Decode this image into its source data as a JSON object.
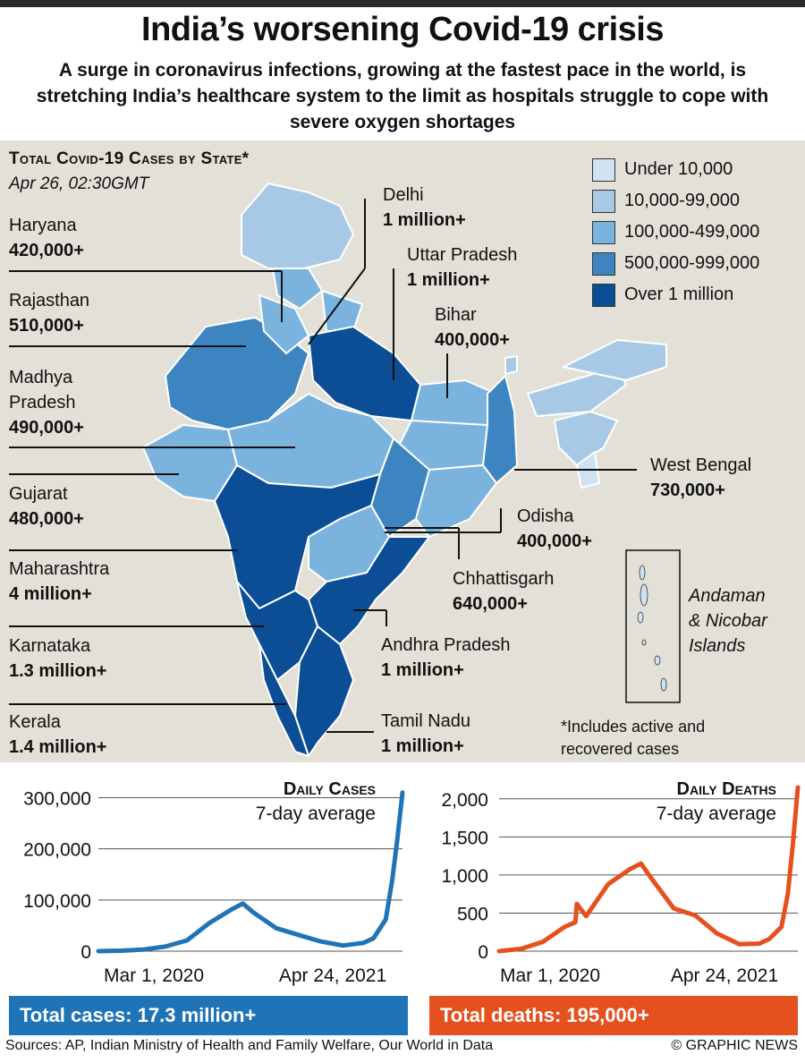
{
  "header": {
    "title": "India’s worsening Covid-19 crisis",
    "subtitle": "A surge in coronavirus infections, growing at the fastest pace in the world, is stretching India’s healthcare system to the limit as hospitals struggle to cope with severe oxygen shortages"
  },
  "map": {
    "heading": "Total Covid-19 Cases by State*",
    "date": "Apr 26, 02:30GMT",
    "legend": [
      {
        "label": "Under 10,000",
        "color": "#cfe2f2"
      },
      {
        "label": "10,000-99,000",
        "color": "#a8c9e6"
      },
      {
        "label": "100,000-499,000",
        "color": "#7ab4de"
      },
      {
        "label": "500,000-999,000",
        "color": "#3d85c0"
      },
      {
        "label": "Over 1 million",
        "color": "#0b4e96"
      }
    ],
    "states": [
      {
        "name": "Haryana",
        "value": "420,000+"
      },
      {
        "name": "Rajasthan",
        "value": "510,000+"
      },
      {
        "name": "Madhya Pradesh",
        "name_l1": "Madhya",
        "name_l2": "Pradesh",
        "value": "490,000+"
      },
      {
        "name": "Gujarat",
        "value": "480,000+"
      },
      {
        "name": "Maharashtra",
        "value": "4 million+"
      },
      {
        "name": "Karnataka",
        "value": "1.3 million+"
      },
      {
        "name": "Kerala",
        "value": "1.4 million+"
      },
      {
        "name": "Delhi",
        "value": "1 million+"
      },
      {
        "name": "Uttar Pradesh",
        "value": "1 million+"
      },
      {
        "name": "Bihar",
        "value": "400,000+"
      },
      {
        "name": "West Bengal",
        "value": "730,000+"
      },
      {
        "name": "Odisha",
        "value": "400,000+"
      },
      {
        "name": "Chhattisgarh",
        "value": "640,000+"
      },
      {
        "name": "Andhra Pradesh",
        "value": "1 million+"
      },
      {
        "name": "Tamil Nadu",
        "value": "1 million+"
      }
    ],
    "inset_label_l1": "Andaman",
    "inset_label_l2": "& Nicobar",
    "inset_label_l3": "Islands",
    "footnote_l1": "*Includes active and",
    "footnote_l2": "recovered cases"
  },
  "chart_data": [
    {
      "type": "line",
      "title": "Daily Cases",
      "subtitle": "7-day average",
      "x_labels": [
        "Mar 1, 2020",
        "Apr 24, 2021"
      ],
      "yticks": [
        0,
        100000,
        200000,
        300000
      ],
      "ytick_labels": [
        "0",
        "100,000",
        "200,000",
        "300,000"
      ],
      "ylim": [
        0,
        320000
      ],
      "color": "#1f73b7",
      "series": [
        {
          "x": [
            "2020-03-01",
            "2020-04-01",
            "2020-05-01",
            "2020-06-01",
            "2020-07-01",
            "2020-08-01",
            "2020-09-01",
            "2020-09-16",
            "2020-10-01",
            "2020-11-01",
            "2020-12-01",
            "2021-01-01",
            "2021-02-01",
            "2021-03-01",
            "2021-03-15",
            "2021-04-01",
            "2021-04-10",
            "2021-04-17",
            "2021-04-24"
          ],
          "values": [
            0,
            800,
            3000,
            9000,
            21000,
            55000,
            82000,
            93000,
            75000,
            45000,
            32000,
            19000,
            11000,
            16000,
            25000,
            62000,
            140000,
            220000,
            310000
          ]
        }
      ],
      "total_label": "Total cases: 17.3 million+"
    },
    {
      "type": "line",
      "title": "Daily Deaths",
      "subtitle": "7-day average",
      "x_labels": [
        "Mar 1, 2020",
        "Apr 24, 2021"
      ],
      "yticks": [
        0,
        500,
        1000,
        1500,
        2000
      ],
      "ytick_labels": [
        "0",
        "500",
        "1,000",
        "1,500",
        "2,000"
      ],
      "ylim": [
        0,
        2150
      ],
      "color": "#e5501f",
      "series": [
        {
          "x": [
            "2020-03-01",
            "2020-04-01",
            "2020-05-01",
            "2020-06-01",
            "2020-06-16",
            "2020-06-18",
            "2020-07-01",
            "2020-08-01",
            "2020-09-01",
            "2020-09-16",
            "2020-10-01",
            "2020-11-01",
            "2020-12-01",
            "2021-01-01",
            "2021-02-01",
            "2021-03-01",
            "2021-03-15",
            "2021-04-01",
            "2021-04-10",
            "2021-04-17",
            "2021-04-24"
          ],
          "values": [
            0,
            30,
            120,
            320,
            380,
            620,
            460,
            880,
            1080,
            1150,
            950,
            560,
            470,
            230,
            90,
            100,
            160,
            320,
            750,
            1400,
            2150
          ]
        }
      ],
      "total_label": "Total deaths: 195,000+"
    }
  ],
  "footer": {
    "sources": "Sources: AP, Indian Ministry of Health and Family Welfare, Our World in Data",
    "credit": "© GRAPHIC NEWS"
  }
}
